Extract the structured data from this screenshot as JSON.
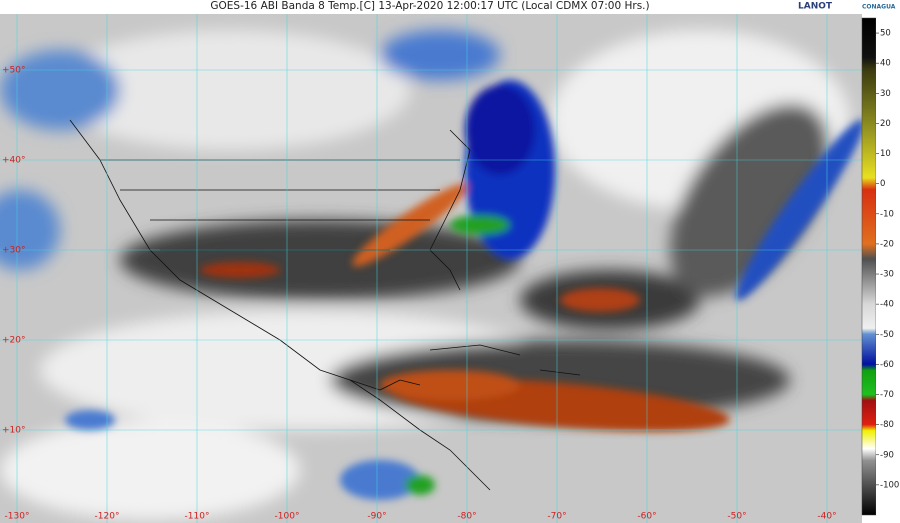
{
  "header": {
    "title": "GOES-16 ABI Banda 8 Temp.[C] 13-Apr-2020 12:00:17 UTC (Local CDMX  07:00 Hrs.)",
    "logo_left": "LANOT",
    "logo_right": "CONAGUA"
  },
  "map": {
    "lat_labels": [
      "+50°",
      "+40°",
      "+30°",
      "+20°",
      "+10°"
    ],
    "lon_labels": [
      "-130°",
      "-120°",
      "-110°",
      "-100°",
      "-90°",
      "-80°",
      "-70°",
      "-60°",
      "-50°",
      "-40°"
    ]
  },
  "colorbar": {
    "lim": [
      -110,
      55
    ],
    "ticks": [
      50,
      40,
      30,
      20,
      10,
      0,
      -10,
      -20,
      -30,
      -40,
      -50,
      -60,
      -70,
      -80,
      -90,
      -100
    ],
    "stops": [
      {
        "value": 55,
        "color": "#000000"
      },
      {
        "value": 42,
        "color": "#101010"
      },
      {
        "value": 38,
        "color": "#3a3a10"
      },
      {
        "value": 20,
        "color": "#8a8a20"
      },
      {
        "value": 2,
        "color": "#e8e020"
      },
      {
        "value": -2,
        "color": "#d83010"
      },
      {
        "value": -20,
        "color": "#e07020"
      },
      {
        "value": -25,
        "color": "#505050"
      },
      {
        "value": -40,
        "color": "#d8d8d8"
      },
      {
        "value": -48,
        "color": "#f0f0f0"
      },
      {
        "value": -50,
        "color": "#6090d0"
      },
      {
        "value": -60,
        "color": "#0010a0"
      },
      {
        "value": -62,
        "color": "#10a010"
      },
      {
        "value": -70,
        "color": "#20c020"
      },
      {
        "value": -72,
        "color": "#a01010"
      },
      {
        "value": -80,
        "color": "#e02010"
      },
      {
        "value": -82,
        "color": "#f0f000"
      },
      {
        "value": -88,
        "color": "#ffffff"
      },
      {
        "value": -92,
        "color": "#909090"
      },
      {
        "value": -110,
        "color": "#000000"
      }
    ]
  }
}
